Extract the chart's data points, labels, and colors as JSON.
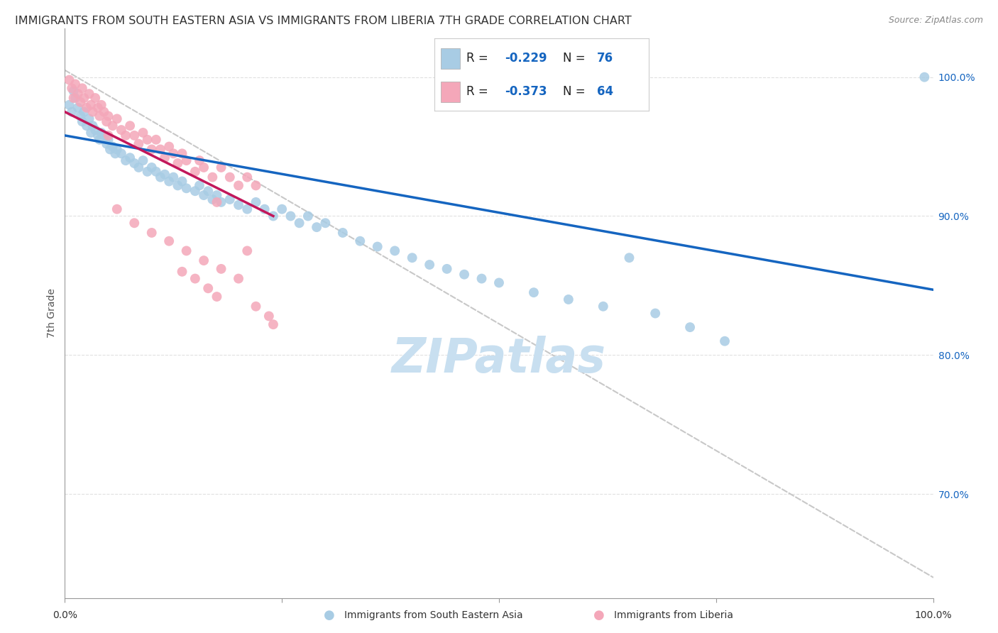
{
  "title": "IMMIGRANTS FROM SOUTH EASTERN ASIA VS IMMIGRANTS FROM LIBERIA 7TH GRADE CORRELATION CHART",
  "source": "Source: ZipAtlas.com",
  "ylabel": "7th Grade",
  "xlim": [
    0.0,
    1.0
  ],
  "ylim": [
    0.625,
    1.035
  ],
  "yticks": [
    0.7,
    0.8,
    0.9,
    1.0
  ],
  "ytick_labels": [
    "70.0%",
    "80.0%",
    "90.0%",
    "100.0%"
  ],
  "watermark": "ZIPatlas",
  "blue_color": "#a8cce4",
  "pink_color": "#f4a7b9",
  "trend_blue": "#1565c0",
  "trend_pink": "#c2185b",
  "trend_dashed_color": "#c8c8c8",
  "blue_scatter_x": [
    0.005,
    0.008,
    0.01,
    0.012,
    0.015,
    0.018,
    0.02,
    0.022,
    0.025,
    0.028,
    0.03,
    0.032,
    0.035,
    0.038,
    0.04,
    0.042,
    0.045,
    0.048,
    0.05,
    0.052,
    0.055,
    0.058,
    0.06,
    0.065,
    0.07,
    0.075,
    0.08,
    0.085,
    0.09,
    0.095,
    0.1,
    0.105,
    0.11,
    0.115,
    0.12,
    0.125,
    0.13,
    0.135,
    0.14,
    0.15,
    0.155,
    0.16,
    0.165,
    0.17,
    0.175,
    0.18,
    0.19,
    0.2,
    0.21,
    0.22,
    0.23,
    0.24,
    0.25,
    0.26,
    0.27,
    0.28,
    0.29,
    0.3,
    0.32,
    0.34,
    0.36,
    0.38,
    0.4,
    0.42,
    0.44,
    0.46,
    0.48,
    0.5,
    0.54,
    0.58,
    0.62,
    0.65,
    0.68,
    0.72,
    0.76,
    0.99
  ],
  "blue_scatter_y": [
    0.98,
    0.975,
    0.99,
    0.985,
    0.978,
    0.972,
    0.968,
    0.975,
    0.965,
    0.97,
    0.96,
    0.965,
    0.962,
    0.958,
    0.955,
    0.96,
    0.958,
    0.952,
    0.955,
    0.948,
    0.95,
    0.945,
    0.948,
    0.945,
    0.94,
    0.942,
    0.938,
    0.935,
    0.94,
    0.932,
    0.935,
    0.932,
    0.928,
    0.93,
    0.925,
    0.928,
    0.922,
    0.925,
    0.92,
    0.918,
    0.922,
    0.915,
    0.918,
    0.912,
    0.915,
    0.91,
    0.912,
    0.908,
    0.905,
    0.91,
    0.905,
    0.9,
    0.905,
    0.9,
    0.895,
    0.9,
    0.892,
    0.895,
    0.888,
    0.882,
    0.878,
    0.875,
    0.87,
    0.865,
    0.862,
    0.858,
    0.855,
    0.852,
    0.845,
    0.84,
    0.835,
    0.87,
    0.83,
    0.82,
    0.81,
    1.0
  ],
  "pink_scatter_x": [
    0.005,
    0.008,
    0.01,
    0.012,
    0.015,
    0.018,
    0.02,
    0.022,
    0.025,
    0.028,
    0.03,
    0.032,
    0.035,
    0.038,
    0.04,
    0.042,
    0.045,
    0.048,
    0.05,
    0.055,
    0.06,
    0.065,
    0.07,
    0.075,
    0.08,
    0.085,
    0.09,
    0.095,
    0.1,
    0.105,
    0.11,
    0.115,
    0.12,
    0.125,
    0.13,
    0.135,
    0.14,
    0.15,
    0.155,
    0.16,
    0.17,
    0.18,
    0.19,
    0.2,
    0.21,
    0.22,
    0.06,
    0.08,
    0.1,
    0.12,
    0.14,
    0.16,
    0.18,
    0.2,
    0.135,
    0.15,
    0.165,
    0.175,
    0.22,
    0.235,
    0.05,
    0.24,
    0.175,
    0.21
  ],
  "pink_scatter_y": [
    0.998,
    0.992,
    0.985,
    0.995,
    0.988,
    0.982,
    0.992,
    0.985,
    0.978,
    0.988,
    0.98,
    0.975,
    0.985,
    0.978,
    0.972,
    0.98,
    0.975,
    0.968,
    0.972,
    0.965,
    0.97,
    0.962,
    0.958,
    0.965,
    0.958,
    0.952,
    0.96,
    0.955,
    0.948,
    0.955,
    0.948,
    0.942,
    0.95,
    0.945,
    0.938,
    0.945,
    0.94,
    0.932,
    0.94,
    0.935,
    0.928,
    0.935,
    0.928,
    0.922,
    0.928,
    0.922,
    0.905,
    0.895,
    0.888,
    0.882,
    0.875,
    0.868,
    0.862,
    0.855,
    0.86,
    0.855,
    0.848,
    0.842,
    0.835,
    0.828,
    0.958,
    0.822,
    0.91,
    0.875
  ],
  "blue_trend_y_start": 0.958,
  "blue_trend_y_end": 0.847,
  "pink_trend_x_end": 0.24,
  "pink_trend_y_start": 0.975,
  "pink_trend_y_end": 0.9,
  "dashed_trend_y_start": 1.005,
  "dashed_trend_y_end": 0.64,
  "background_color": "#ffffff",
  "grid_color": "#e0e0e0",
  "title_fontsize": 11.5,
  "axis_label_fontsize": 10,
  "tick_fontsize": 10,
  "watermark_fontsize": 48,
  "watermark_color": "#c8dff0",
  "source_fontsize": 9,
  "legend_fontsize": 12
}
